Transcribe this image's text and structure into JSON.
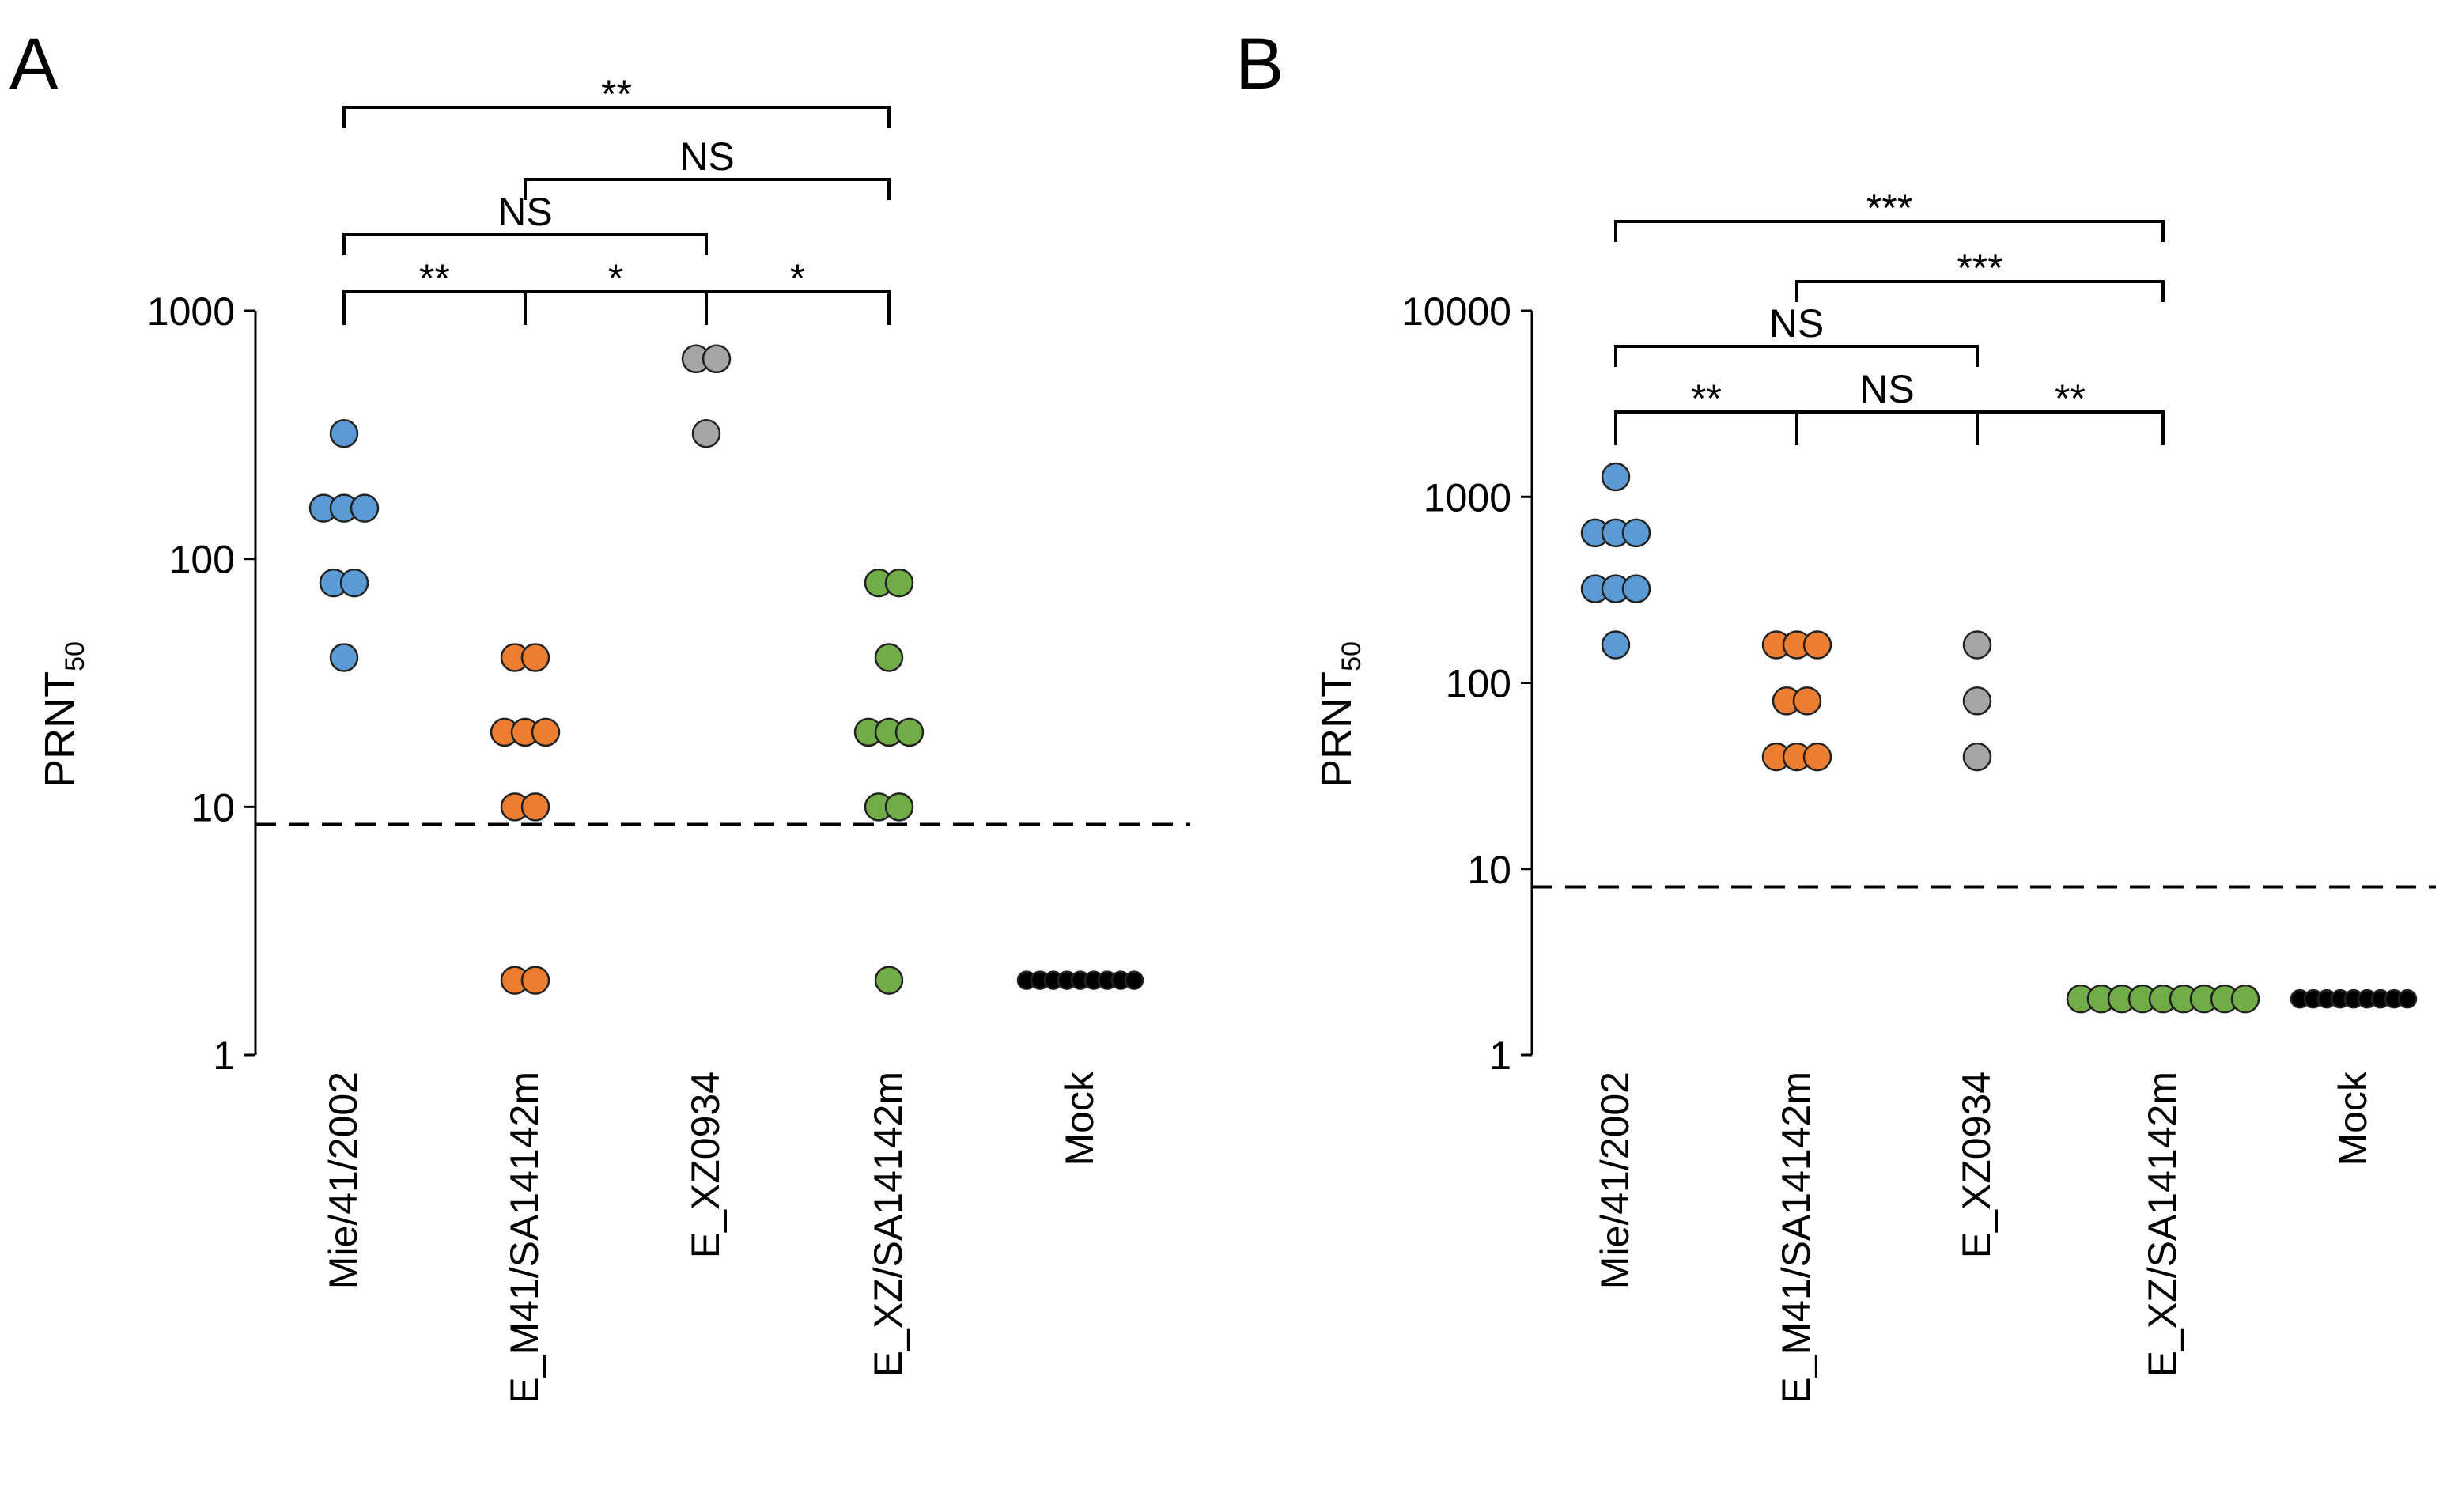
{
  "colors": {
    "Mie/41/2002": "#5b9bd5",
    "E_M41/SA14142m": "#ed7d31",
    "E_XZ0934": "#a5a5a5",
    "E_XZ/SA14142m": "#70ad47",
    "Mock": "#000000"
  },
  "chart_data": [
    {
      "panel": "A",
      "type": "scatter",
      "scale": "log",
      "ylabel": "PRNT",
      "ylabel_sub": "50",
      "ylim": [
        1,
        1000
      ],
      "yticks": [
        "1",
        "10",
        "100",
        "1000"
      ],
      "categories": [
        "Mie/41/2002",
        "E_M41/SA14142m",
        "E_XZ0934",
        "E_XZ/SA14142m",
        "Mock"
      ],
      "points": [
        [
          40,
          80,
          80,
          160,
          160,
          160,
          320
        ],
        [
          2,
          2,
          10,
          10,
          20,
          20,
          20,
          40,
          40
        ],
        [
          320,
          640,
          640
        ],
        [
          2,
          10,
          10,
          20,
          20,
          20,
          40,
          80,
          80
        ],
        [
          2,
          2,
          2,
          2,
          2,
          2,
          2,
          2,
          2
        ]
      ],
      "detection_limit": 8.5,
      "comparisons": [
        {
          "from": 0,
          "to": 1,
          "level": 0,
          "label": "**"
        },
        {
          "from": 1,
          "to": 2,
          "level": 0,
          "label": "*"
        },
        {
          "from": 2,
          "to": 3,
          "level": 0,
          "label": "*"
        },
        {
          "from": 0,
          "to": 2,
          "level": 1,
          "label": "NS"
        },
        {
          "from": 1,
          "to": 3,
          "level": 2,
          "label": "NS"
        },
        {
          "from": 0,
          "to": 3,
          "level": 3,
          "label": "**"
        }
      ]
    },
    {
      "panel": "B",
      "type": "scatter",
      "scale": "log",
      "ylabel": "PRNT",
      "ylabel_sub": "50",
      "ylim": [
        1,
        10000
      ],
      "yticks": [
        "1",
        "10",
        "100",
        "1000",
        "10000"
      ],
      "categories": [
        "Mie/41/2002",
        "E_M41/SA14142m",
        "E_XZ0934",
        "E_XZ/SA14142m",
        "Mock"
      ],
      "points": [
        [
          160,
          320,
          320,
          320,
          640,
          640,
          640,
          1280
        ],
        [
          40,
          40,
          40,
          80,
          80,
          160,
          160,
          160
        ],
        [
          40,
          80,
          160
        ],
        [
          2,
          2,
          2,
          2,
          2,
          2,
          2,
          2,
          2
        ],
        [
          2,
          2,
          2,
          2,
          2,
          2,
          2,
          2,
          2
        ]
      ],
      "detection_limit": 8,
      "comparisons": [
        {
          "from": 0,
          "to": 1,
          "level": 0,
          "label": "**"
        },
        {
          "from": 1,
          "to": 2,
          "level": 0,
          "label": "NS"
        },
        {
          "from": 2,
          "to": 3,
          "level": 0,
          "label": "**"
        },
        {
          "from": 0,
          "to": 2,
          "level": 1,
          "label": "NS"
        },
        {
          "from": 1,
          "to": 3,
          "level": 2,
          "label": "***"
        },
        {
          "from": 0,
          "to": 3,
          "level": 3,
          "label": "***"
        }
      ]
    }
  ]
}
